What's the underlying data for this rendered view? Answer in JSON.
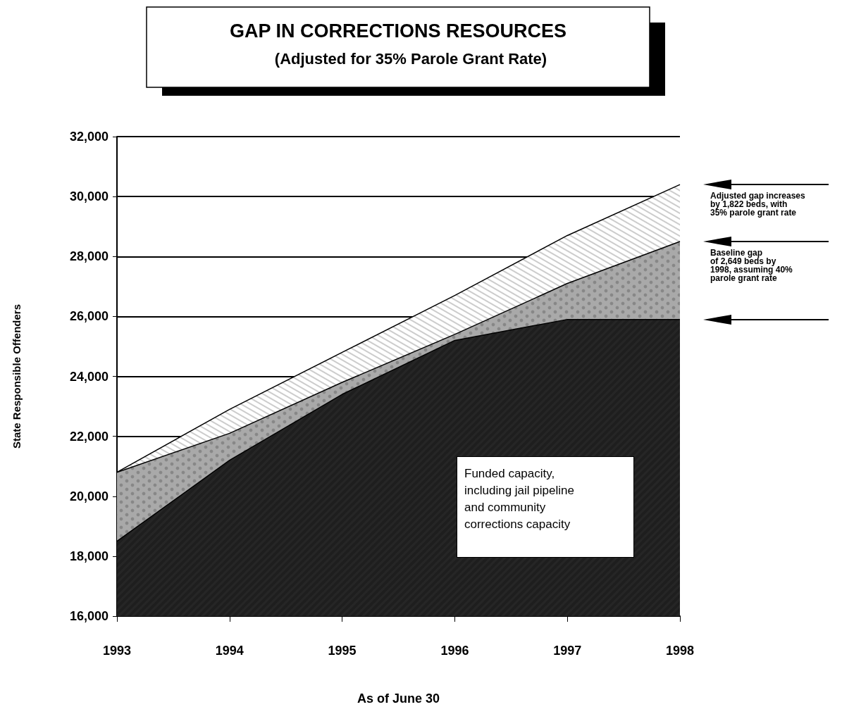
{
  "chart_data": {
    "type": "area",
    "title": "GAP IN CORRECTIONS RESOURCES",
    "subtitle": "(Adjusted for 35% Parole Grant Rate)",
    "xlabel": "As of June 30",
    "ylabel": "State Responsible Offenders",
    "categories": [
      "1993",
      "1994",
      "1995",
      "1996",
      "1997",
      "1998"
    ],
    "series": [
      {
        "color": "#ffffff",
        "values": [
          20800,
          22900,
          24800,
          26700,
          28700,
          30400
        ]
      },
      {
        "color": "#a9a9a9",
        "values": [
          20800,
          22100,
          23800,
          25400,
          27100,
          28500
        ]
      },
      {
        "color": "#262626",
        "values": [
          18500,
          21200,
          23400,
          25200,
          25900,
          25900
        ]
      }
    ],
    "ylim": [
      16000,
      32000
    ],
    "yticks": [
      {
        "value": 16000,
        "label": "16,000"
      },
      {
        "value": 18000,
        "label": "18,000"
      },
      {
        "value": 20000,
        "label": "20,000"
      },
      {
        "value": 22000,
        "label": "22,000"
      },
      {
        "value": 24000,
        "label": "24,000"
      },
      {
        "value": 26000,
        "label": "26,000"
      },
      {
        "value": 28000,
        "label": "28,000"
      },
      {
        "value": 30000,
        "label": "30,000"
      },
      {
        "value": 32000,
        "label": "32,000"
      }
    ],
    "grid": "y",
    "marker": "none",
    "annotations": [
      "Funded capacity,\nincluding jail pipeline\nand community\ncorrections capacity",
      "Adjusted gap increases\nby 1,822 beds, with\n35% parole grant rate",
      "Baseline gap\nof 2,649 beds by\n1998, assuming 40%\nparole grant rate"
    ]
  }
}
